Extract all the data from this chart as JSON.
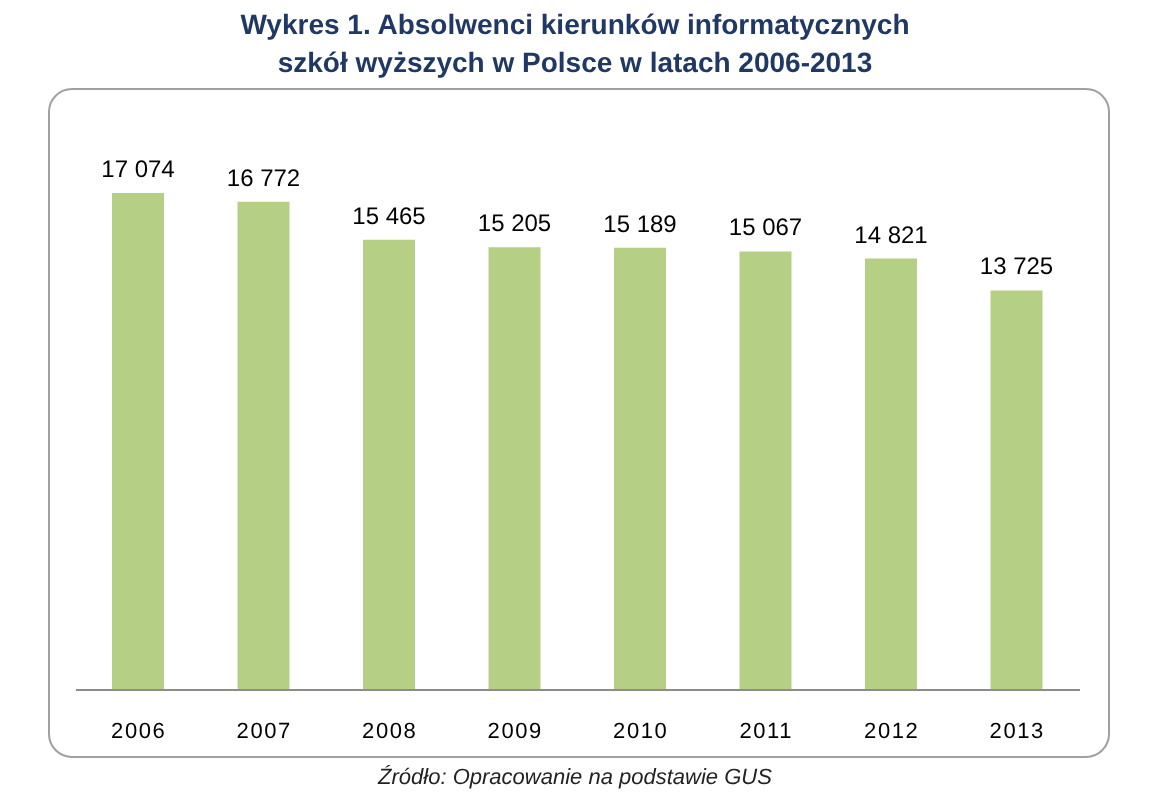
{
  "chart_data": {
    "type": "bar",
    "title": "Wykres 1. Absolwenci kierunków informatycznych szkół wyższych w Polsce w latach 2006-2013",
    "categories": [
      "2006",
      "2007",
      "2008",
      "2009",
      "2010",
      "2011",
      "2012",
      "2013"
    ],
    "values": [
      17074,
      16772,
      15465,
      15205,
      15189,
      15067,
      14821,
      13725
    ],
    "color": "#b5cf85",
    "value_labels": [
      "17 074",
      "16 772",
      "15 465",
      "15 205",
      "15 189",
      "15 067",
      "14 821",
      "13 725"
    ],
    "annotations": [
      "Źródło: Opracowanie na podstawie GUS"
    ]
  }
}
